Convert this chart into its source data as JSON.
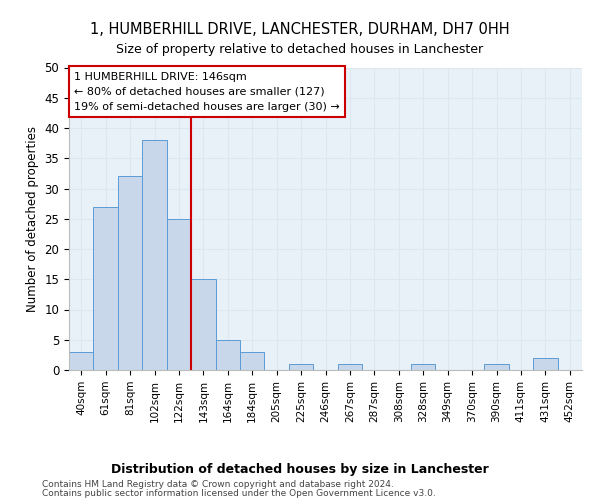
{
  "title": "1, HUMBERHILL DRIVE, LANCHESTER, DURHAM, DH7 0HH",
  "subtitle": "Size of property relative to detached houses in Lanchester",
  "xlabel": "Distribution of detached houses by size in Lanchester",
  "ylabel": "Number of detached properties",
  "bar_labels": [
    "40sqm",
    "61sqm",
    "81sqm",
    "102sqm",
    "122sqm",
    "143sqm",
    "164sqm",
    "184sqm",
    "205sqm",
    "225sqm",
    "246sqm",
    "267sqm",
    "287sqm",
    "308sqm",
    "328sqm",
    "349sqm",
    "370sqm",
    "390sqm",
    "411sqm",
    "431sqm",
    "452sqm"
  ],
  "bar_values": [
    3,
    27,
    32,
    38,
    25,
    15,
    5,
    3,
    0,
    1,
    0,
    1,
    0,
    0,
    1,
    0,
    0,
    1,
    0,
    2,
    0
  ],
  "bar_color": "#c8d8ea",
  "bar_edge_color": "#5b9bd5",
  "vline_x": 4.5,
  "annotation_title": "1 HUMBERHILL DRIVE: 146sqm",
  "annotation_line1": "← 80% of detached houses are smaller (127)",
  "annotation_line2": "19% of semi-detached houses are larger (30) →",
  "annotation_box_color": "#ffffff",
  "annotation_box_edge_color": "#cc0000",
  "vline_color": "#cc0000",
  "ylim": [
    0,
    50
  ],
  "yticks": [
    0,
    5,
    10,
    15,
    20,
    25,
    30,
    35,
    40,
    45,
    50
  ],
  "grid_color": "#dce8f0",
  "bg_color": "#e8f0f8",
  "footer1": "Contains HM Land Registry data © Crown copyright and database right 2024.",
  "footer2": "Contains public sector information licensed under the Open Government Licence v3.0."
}
